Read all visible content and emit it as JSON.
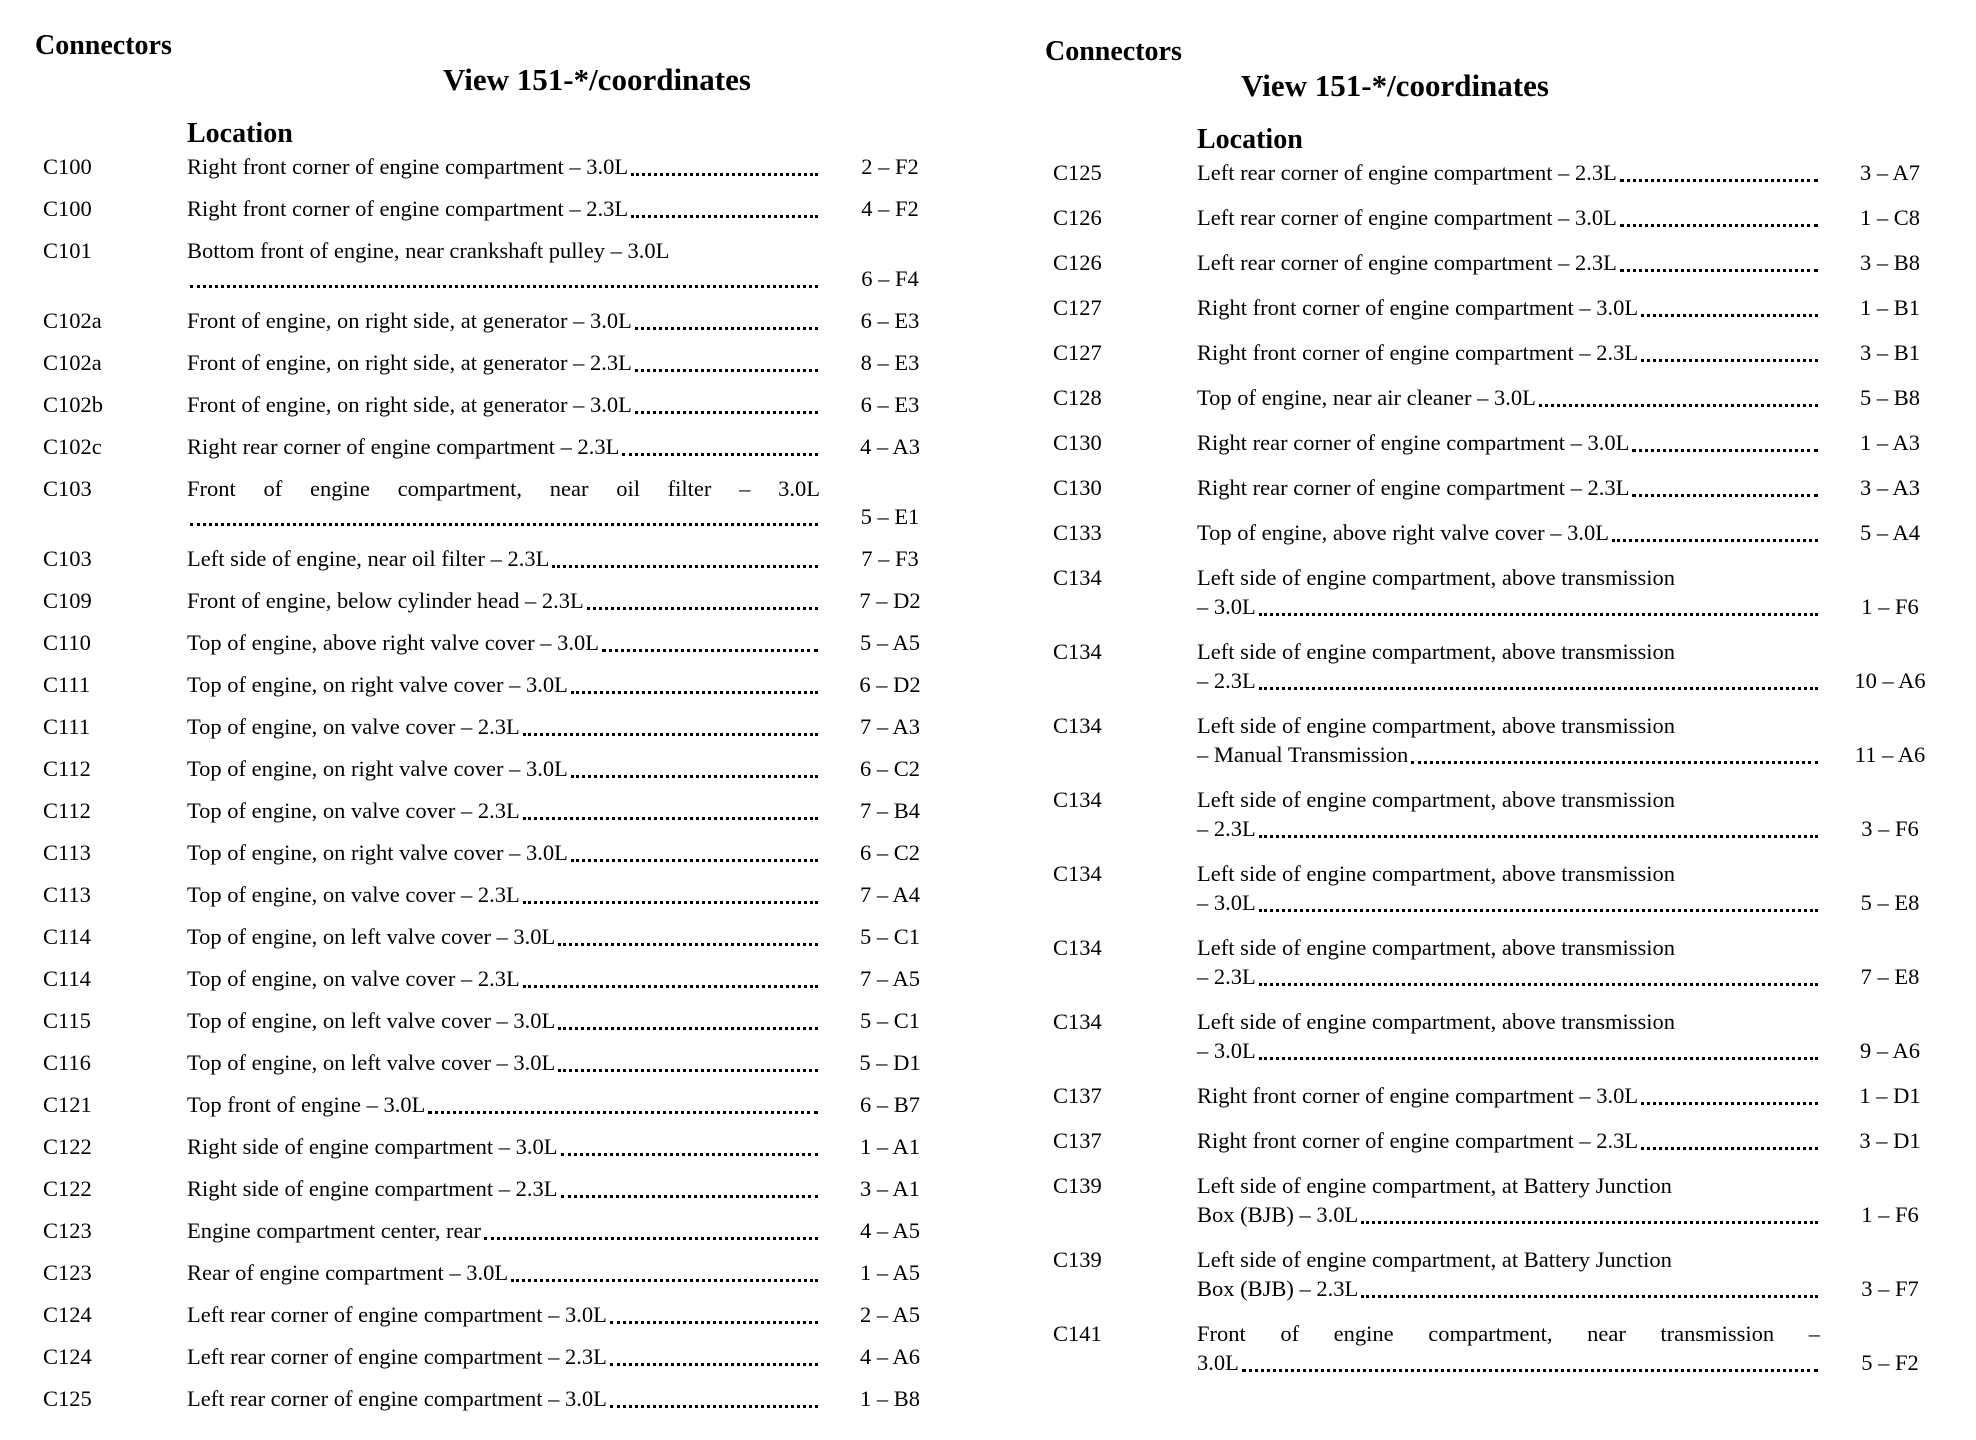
{
  "page": {
    "background_color": "#ffffff",
    "text_color": "#000000"
  },
  "columns": [
    {
      "title": "Connectors",
      "view_header": "View 151-*/coordinates",
      "location_header": "Location",
      "rows": [
        {
          "id": "C100",
          "lines": [
            "Right front corner of engine compartment – 3.0L"
          ],
          "coord": "2 – F2"
        },
        {
          "id": "C100",
          "lines": [
            "Right front corner of engine compartment – 2.3L"
          ],
          "coord": "4 – F2"
        },
        {
          "id": "C101",
          "lines": [
            "Bottom front of engine, near crankshaft pulley – 3.0L",
            ""
          ],
          "coord": "6 – F4"
        },
        {
          "id": "C102a",
          "lines": [
            "Front of engine, on right side, at generator – 3.0L"
          ],
          "coord": "6 – E3"
        },
        {
          "id": "C102a",
          "lines": [
            "Front of engine, on right side, at generator – 2.3L"
          ],
          "coord": "8 – E3"
        },
        {
          "id": "C102b",
          "lines": [
            "Front of engine, on right side, at generator – 3.0L"
          ],
          "coord": "6 – E3"
        },
        {
          "id": "C102c",
          "lines": [
            "Right rear corner of engine compartment – 2.3L"
          ],
          "coord": "4 – A3"
        },
        {
          "id": "C103",
          "lines": [
            "Front of engine compartment, near oil filter – 3.0L",
            ""
          ],
          "coord": "5 – E1",
          "justify": true
        },
        {
          "id": "C103",
          "lines": [
            "Left side of engine, near oil filter – 2.3L"
          ],
          "coord": "7 – F3"
        },
        {
          "id": "C109",
          "lines": [
            "Front of engine, below cylinder head – 2.3L"
          ],
          "coord": "7 – D2"
        },
        {
          "id": "C110",
          "lines": [
            "Top of engine, above right valve cover – 3.0L"
          ],
          "coord": "5 – A5"
        },
        {
          "id": "C111",
          "lines": [
            "Top of engine, on right valve cover – 3.0L"
          ],
          "coord": "6 – D2"
        },
        {
          "id": "C111",
          "lines": [
            "Top of engine, on valve cover – 2.3L"
          ],
          "coord": "7 – A3"
        },
        {
          "id": "C112",
          "lines": [
            "Top of engine, on right valve cover – 3.0L"
          ],
          "coord": "6 – C2"
        },
        {
          "id": "C112",
          "lines": [
            "Top of engine, on valve cover – 2.3L"
          ],
          "coord": "7 – B4"
        },
        {
          "id": "C113",
          "lines": [
            "Top of engine, on right valve cover – 3.0L"
          ],
          "coord": "6 – C2"
        },
        {
          "id": "C113",
          "lines": [
            "Top of engine, on valve cover – 2.3L"
          ],
          "coord": "7 – A4"
        },
        {
          "id": "C114",
          "lines": [
            "Top of engine, on left valve cover – 3.0L"
          ],
          "coord": "5 – C1"
        },
        {
          "id": "C114",
          "lines": [
            "Top of engine, on valve cover – 2.3L"
          ],
          "coord": "7 – A5"
        },
        {
          "id": "C115",
          "lines": [
            "Top of engine, on left valve cover – 3.0L"
          ],
          "coord": "5 – C1"
        },
        {
          "id": "C116",
          "lines": [
            "Top of engine, on left valve cover – 3.0L"
          ],
          "coord": "5 – D1"
        },
        {
          "id": "C121",
          "lines": [
            "Top front of engine – 3.0L"
          ],
          "coord": "6 – B7"
        },
        {
          "id": "C122",
          "lines": [
            "Right side of engine compartment – 3.0L"
          ],
          "coord": "1 – A1"
        },
        {
          "id": "C122",
          "lines": [
            "Right side of engine compartment – 2.3L"
          ],
          "coord": "3 – A1"
        },
        {
          "id": "C123",
          "lines": [
            "Engine compartment center, rear"
          ],
          "coord": "4 – A5"
        },
        {
          "id": "C123",
          "lines": [
            "Rear of engine compartment – 3.0L"
          ],
          "coord": "1 – A5"
        },
        {
          "id": "C124",
          "lines": [
            "Left rear corner of engine compartment – 3.0L"
          ],
          "coord": "2 – A5"
        },
        {
          "id": "C124",
          "lines": [
            "Left rear corner of engine compartment – 2.3L"
          ],
          "coord": "4 – A6"
        },
        {
          "id": "C125",
          "lines": [
            "Left rear corner of engine compartment – 3.0L"
          ],
          "coord": "1 – B8"
        }
      ]
    },
    {
      "title": "Connectors",
      "view_header": "View 151-*/coordinates",
      "location_header": "Location",
      "rows": [
        {
          "id": "C125",
          "lines": [
            "Left rear corner of engine compartment – 2.3L"
          ],
          "coord": "3 – A7"
        },
        {
          "id": "C126",
          "lines": [
            "Left rear corner of engine compartment – 3.0L"
          ],
          "coord": "1 – C8"
        },
        {
          "id": "C126",
          "lines": [
            "Left rear corner of engine compartment – 2.3L"
          ],
          "coord": "3 – B8"
        },
        {
          "id": "C127",
          "lines": [
            "Right front corner of engine compartment – 3.0L"
          ],
          "coord": "1 – B1"
        },
        {
          "id": "C127",
          "lines": [
            "Right front corner of engine compartment – 2.3L"
          ],
          "coord": "3 – B1"
        },
        {
          "id": "C128",
          "lines": [
            "Top of engine, near air cleaner – 3.0L"
          ],
          "coord": "5 – B8"
        },
        {
          "id": "C130",
          "lines": [
            "Right rear corner of engine compartment – 3.0L"
          ],
          "coord": "1 – A3"
        },
        {
          "id": "C130",
          "lines": [
            "Right rear corner of engine compartment – 2.3L"
          ],
          "coord": "3 – A3"
        },
        {
          "id": "C133",
          "lines": [
            "Top of engine, above right valve cover – 3.0L"
          ],
          "coord": "5 – A4"
        },
        {
          "id": "C134",
          "lines": [
            "Left side of engine compartment, above transmission",
            "– 3.0L"
          ],
          "coord": "1 – F6"
        },
        {
          "id": "C134",
          "lines": [
            "Left side of engine compartment, above transmission",
            "– 2.3L"
          ],
          "coord": "10 – A6"
        },
        {
          "id": "C134",
          "lines": [
            "Left side of engine compartment, above transmission",
            "– Manual Transmission"
          ],
          "coord": "11 – A6"
        },
        {
          "id": "C134",
          "lines": [
            "Left side of engine compartment, above transmission",
            "– 2.3L"
          ],
          "coord": "3 – F6"
        },
        {
          "id": "C134",
          "lines": [
            "Left side of engine compartment, above transmission",
            "– 3.0L"
          ],
          "coord": "5 – E8"
        },
        {
          "id": "C134",
          "lines": [
            "Left side of engine compartment, above transmission",
            "– 2.3L"
          ],
          "coord": "7 – E8"
        },
        {
          "id": "C134",
          "lines": [
            "Left side of engine compartment, above transmission",
            "– 3.0L"
          ],
          "coord": "9 – A6"
        },
        {
          "id": "C137",
          "lines": [
            "Right front corner of engine compartment – 3.0L"
          ],
          "coord": "1 – D1"
        },
        {
          "id": "C137",
          "lines": [
            "Right front corner of engine compartment – 2.3L"
          ],
          "coord": "3 – D1"
        },
        {
          "id": "C139",
          "lines": [
            "Left side of engine compartment, at Battery Junction",
            "Box (BJB) – 3.0L"
          ],
          "coord": "1 – F6"
        },
        {
          "id": "C139",
          "lines": [
            "Left side of engine compartment, at Battery Junction",
            "Box (BJB) – 2.3L"
          ],
          "coord": "3 – F7"
        },
        {
          "id": "C141",
          "lines": [
            "Front of engine compartment, near transmission –",
            "3.0L"
          ],
          "coord": "5 – F2",
          "justify": true
        }
      ]
    }
  ]
}
